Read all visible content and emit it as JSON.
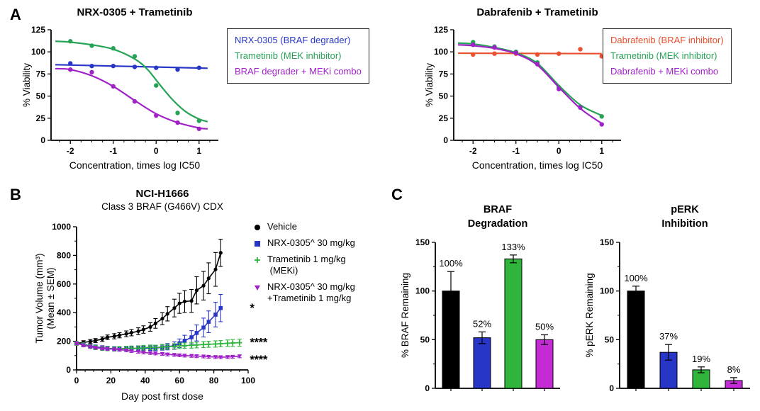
{
  "panels": {
    "a_label": "A",
    "b_label": "B",
    "c_label": "C"
  },
  "colors": {
    "blue": "#2836C8",
    "green": "#27A357",
    "green_bright": "#2FB53C",
    "purple": "#A021C8",
    "magenta": "#C32BD5",
    "red": "#E8502F",
    "black": "#000000"
  },
  "chart_data": [
    {
      "mount": "dose-nrx",
      "type": "line",
      "title": "NRX-0305 + Trametinib",
      "xlabel": "Concentration, times log IC50",
      "ylabel": "% Viability",
      "xlim": [
        -2.45,
        1.45
      ],
      "ylim": [
        0,
        125
      ],
      "xticks": [
        -2,
        -1,
        0,
        1
      ],
      "yticks": [
        0,
        25,
        50,
        75,
        100,
        125
      ],
      "minor_x": 0.25,
      "margins": {
        "l": 44,
        "t": 40,
        "r": 20,
        "b": 50
      },
      "legend": [
        {
          "label": "NRX-0305 (BRAF degrader)",
          "color": "#2836C8"
        },
        {
          "label": "Trametinib (MEK inhibitor)",
          "color": "#27A357"
        },
        {
          "label": "BRAF degrader + MEKi combo",
          "color": "#A021C8"
        }
      ],
      "series": [
        {
          "name": "NRX-0305 (BRAF degrader)",
          "color": "#2836C8",
          "marker": "circle",
          "msize": 3.2,
          "points": {
            "x": [
              -2,
              -1.5,
              -1,
              -0.5,
              0,
              0.5,
              1
            ],
            "y": [
              87,
              84,
              84,
              83,
              82,
              80,
              82
            ]
          },
          "curve": {
            "x": [
              -2.35,
              1.2
            ],
            "y": [
              85.5,
              81.5
            ]
          }
        },
        {
          "name": "Trametinib (MEK inhibitor)",
          "color": "#27A357",
          "marker": "circle",
          "msize": 3.2,
          "points": {
            "x": [
              -2,
              -1.5,
              -1,
              -0.5,
              0,
              0.5,
              1
            ],
            "y": [
              112,
              107,
              104,
              95,
              62,
              31,
              22
            ]
          },
          "curve": {
            "x": [
              -2.35,
              -2,
              -1.5,
              -1,
              -0.5,
              -0.2,
              0.1,
              0.4,
              0.7,
              1,
              1.2
            ],
            "y": [
              112,
              111,
              108,
              103,
              92,
              80,
              62,
              45,
              32,
              24,
              21
            ]
          }
        },
        {
          "name": "BRAF degrader + MEKi combo",
          "color": "#A021C8",
          "marker": "circle",
          "msize": 3.2,
          "points": {
            "x": [
              -2,
              -1.5,
              -1,
              -0.5,
              0,
              0.5,
              1
            ],
            "y": [
              80,
              77,
              61,
              44,
              28,
              20,
              13
            ]
          },
          "curve": {
            "x": [
              -2.35,
              -2,
              -1.5,
              -1,
              -0.5,
              0,
              0.5,
              1,
              1.2
            ],
            "y": [
              81,
              80,
              73,
              61,
              45,
              30,
              20,
              14,
              13
            ]
          }
        }
      ]
    },
    {
      "mount": "dose-dab",
      "type": "line",
      "title": "Dabrafenib + Trametinib",
      "xlabel": "Concentration, times log IC50",
      "ylabel": "% Viability",
      "xlim": [
        -2.45,
        1.45
      ],
      "ylim": [
        0,
        125
      ],
      "xticks": [
        -2,
        -1,
        0,
        1
      ],
      "yticks": [
        0,
        25,
        50,
        75,
        100,
        125
      ],
      "minor_x": 0.25,
      "margins": {
        "l": 44,
        "t": 40,
        "r": 20,
        "b": 50
      },
      "legend": [
        {
          "label": "Dabrafenib (BRAF inhibitor)",
          "color": "#E8502F"
        },
        {
          "label": "Trametinib (MEK inhibitor)",
          "color": "#27A357"
        },
        {
          "label": "Dabrafenib + MEKi combo",
          "color": "#A021C8"
        }
      ],
      "series": [
        {
          "name": "Dabrafenib (BRAF inhibitor)",
          "color": "#E8502F",
          "marker": "circle",
          "msize": 3.2,
          "points": {
            "x": [
              -2,
              -1.5,
              -1,
              -0.5,
              0,
              0.5,
              1
            ],
            "y": [
              97,
              98,
              98,
              97,
              98,
              103,
              95
            ]
          },
          "curve": {
            "x": [
              -2.35,
              1.0
            ],
            "y": [
              98.5,
              98
            ]
          }
        },
        {
          "name": "Trametinib (MEK inhibitor)",
          "color": "#27A357",
          "marker": "circle",
          "msize": 3.2,
          "points": {
            "x": [
              -2,
              -1.5,
              -1,
              -0.5,
              0,
              0.5,
              1
            ],
            "y": [
              111,
              106,
              100,
              88,
              60,
              38,
              27
            ]
          },
          "curve": {
            "x": [
              -2.35,
              -2,
              -1.5,
              -1,
              -0.5,
              0,
              0.5,
              1
            ],
            "y": [
              110,
              109,
              105,
              99,
              87,
              62,
              40,
              28
            ]
          }
        },
        {
          "name": "Dabrafenib + MEKi combo",
          "color": "#A021C8",
          "marker": "circle",
          "msize": 3.2,
          "points": {
            "x": [
              -2,
              -1.5,
              -1,
              -0.5,
              0,
              0.5,
              1
            ],
            "y": [
              108,
              105,
              99,
              86,
              58,
              37,
              18
            ]
          },
          "curve": {
            "x": [
              -2.35,
              -2,
              -1.5,
              -1,
              -0.5,
              0,
              0.5,
              1
            ],
            "y": [
              108,
              107,
              104,
              98,
              85,
              60,
              36,
              19
            ]
          }
        }
      ]
    },
    {
      "mount": "cdx",
      "type": "line",
      "title": "NCI-H1666",
      "subtitle": "Class 3 BRAF (G466V) CDX",
      "xlabel": "Day post first dose",
      "ylabel": "Tumor Volume (mm³)",
      "ylabel2": "(Mean ±  SEM)",
      "xlim": [
        0,
        100
      ],
      "ylim": [
        0,
        1000
      ],
      "xticks": [
        0,
        20,
        40,
        60,
        80,
        100
      ],
      "yticks": [
        0,
        200,
        400,
        600,
        800,
        1000
      ],
      "minor_x": 5,
      "minor_y": 100,
      "margins": {
        "l": 66,
        "t": 62,
        "r": 62,
        "b": 52
      },
      "legend": [
        {
          "lines": [
            "Vehicle"
          ],
          "color": "#000000",
          "marker": "circle"
        },
        {
          "lines": [
            "NRX-0305^ 30 mg/kg"
          ],
          "color": "#2836C8",
          "marker": "square"
        },
        {
          "lines": [
            "Trametinib 1 mg/kg",
            " (MEKi)"
          ],
          "color": "#2FB53C",
          "marker": "plus"
        },
        {
          "lines": [
            "NRX-0305^ 30 mg/kg",
            "+Trametinib 1 mg/kg"
          ],
          "color": "#A021C8",
          "marker": "triangle-down"
        }
      ],
      "series": [
        {
          "name": "Vehicle",
          "color": "#000000",
          "marker": "circle",
          "msize": 2.6,
          "connected": true,
          "points": {
            "x": [
              0,
              4,
              8,
              11,
              15,
              18,
              22,
              25,
              29,
              32,
              36,
              39,
              43,
              46,
              50,
              53,
              57,
              60,
              63,
              67,
              70,
              74,
              77,
              81,
              84
            ],
            "y": [
              185,
              192,
              198,
              205,
              215,
              228,
              235,
              242,
              252,
              260,
              270,
              282,
              300,
              325,
              358,
              392,
              432,
              465,
              478,
              482,
              556,
              588,
              640,
              702,
              818
            ]
          },
          "err": [
            12,
            12,
            14,
            14,
            16,
            16,
            18,
            18,
            20,
            22,
            24,
            26,
            30,
            34,
            42,
            50,
            62,
            70,
            76,
            80,
            95,
            100,
            108,
            118,
            95
          ]
        },
        {
          "name": "NRX-0305^ 30 mg/kg",
          "color": "#2836C8",
          "marker": "square",
          "msize": 2.8,
          "connected": true,
          "points": {
            "x": [
              0,
              4,
              8,
              11,
              15,
              18,
              22,
              25,
              29,
              32,
              36,
              39,
              43,
              46,
              50,
              53,
              57,
              60,
              63,
              67,
              70,
              74,
              77,
              81,
              84
            ],
            "y": [
              185,
              178,
              168,
              161,
              155,
              150,
              148,
              146,
              149,
              147,
              152,
              150,
              154,
              152,
              158,
              162,
              170,
              186,
              204,
              228,
              258,
              296,
              336,
              386,
              432
            ]
          },
          "err": [
            12,
            12,
            12,
            13,
            14,
            15,
            15,
            15,
            15,
            16,
            16,
            16,
            18,
            18,
            20,
            22,
            26,
            30,
            38,
            46,
            56,
            66,
            76,
            86,
            95
          ]
        },
        {
          "name": "Trametinib 1 mg/kg (MEKi)",
          "color": "#2FB53C",
          "marker": "plus",
          "msize": 3.5,
          "connected": true,
          "points": {
            "x": [
              0,
              4,
              8,
              11,
              15,
              18,
              22,
              25,
              29,
              32,
              36,
              39,
              43,
              46,
              50,
              53,
              57,
              60,
              63,
              67,
              70,
              74,
              77,
              81,
              84,
              88,
              91,
              95
            ],
            "y": [
              185,
              175,
              163,
              156,
              150,
              148,
              146,
              148,
              150,
              152,
              151,
              155,
              158,
              156,
              160,
              162,
              165,
              168,
              170,
              172,
              174,
              177,
              179,
              181,
              183,
              186,
              188,
              190
            ]
          },
          "err": [
            12,
            13,
            13,
            14,
            14,
            14,
            15,
            15,
            15,
            15,
            16,
            16,
            16,
            17,
            17,
            18,
            18,
            19,
            19,
            20,
            20,
            21,
            21,
            22,
            22,
            23,
            24,
            25
          ]
        },
        {
          "name": "NRX-0305^ 30 mg/kg + Trametinib 1 mg/kg",
          "color": "#A021C8",
          "marker": "triangle-down",
          "msize": 3,
          "connected": true,
          "points": {
            "x": [
              0,
              4,
              8,
              11,
              15,
              18,
              22,
              25,
              29,
              32,
              36,
              39,
              43,
              46,
              50,
              53,
              57,
              60,
              63,
              67,
              70,
              74,
              77,
              81,
              84,
              88,
              91,
              95
            ],
            "y": [
              185,
              172,
              162,
              155,
              150,
              147,
              144,
              141,
              137,
              132,
              127,
              122,
              118,
              115,
              112,
              108,
              105,
              102,
              100,
              98,
              96,
              94,
              92,
              90,
              89,
              90,
              92,
              95
            ]
          },
          "err": [
            10,
            10,
            10,
            10,
            10,
            10,
            10,
            10,
            10,
            10,
            10,
            10,
            10,
            10,
            10,
            10,
            10,
            10,
            10,
            10,
            10,
            10,
            10,
            10,
            10,
            10,
            10,
            10
          ]
        }
      ],
      "annotations": [
        {
          "text": "*",
          "color": "#2836C8",
          "x": 101,
          "y": 430
        },
        {
          "text": "****",
          "color": "#2FB53C",
          "x": 101,
          "y": 190
        },
        {
          "text": "****",
          "color": "#A021C8",
          "x": 101,
          "y": 70
        }
      ]
    },
    {
      "mount": "braf-deg",
      "type": "bar",
      "title_lines": [
        "BRAF",
        "Degradation"
      ],
      "ylabel": "% BRAF Remaining",
      "ylim": [
        0,
        150
      ],
      "yticks": [
        0,
        50,
        100,
        150
      ],
      "minor_y": 25,
      "margins": {
        "l": 54,
        "t": 64,
        "r": 10,
        "b": 30
      },
      "bars": [
        {
          "value": 100,
          "err": 20,
          "color": "#000000",
          "label": "100%"
        },
        {
          "value": 52,
          "err": 6,
          "color": "#2836C8",
          "label": "52%"
        },
        {
          "value": 133,
          "err": 4,
          "color": "#2FB53C",
          "label": "133%"
        },
        {
          "value": 50,
          "err": 5,
          "color": "#C32BD5",
          "label": "50%"
        }
      ]
    },
    {
      "mount": "perk-inh",
      "type": "bar",
      "title_lines": [
        "pERK",
        "Inhibition"
      ],
      "ylabel": "% pERK Remaining",
      "ylim": [
        0,
        150
      ],
      "yticks": [
        0,
        50,
        100,
        150
      ],
      "minor_y": 25,
      "margins": {
        "l": 54,
        "t": 64,
        "r": 10,
        "b": 30
      },
      "bars": [
        {
          "value": 100,
          "err": 5,
          "color": "#000000",
          "label": "100%"
        },
        {
          "value": 37,
          "err": 8,
          "color": "#2836C8",
          "label": "37%"
        },
        {
          "value": 19,
          "err": 3,
          "color": "#2FB53C",
          "label": "19%"
        },
        {
          "value": 8,
          "err": 3,
          "color": "#C32BD5",
          "label": "8%"
        }
      ]
    }
  ]
}
